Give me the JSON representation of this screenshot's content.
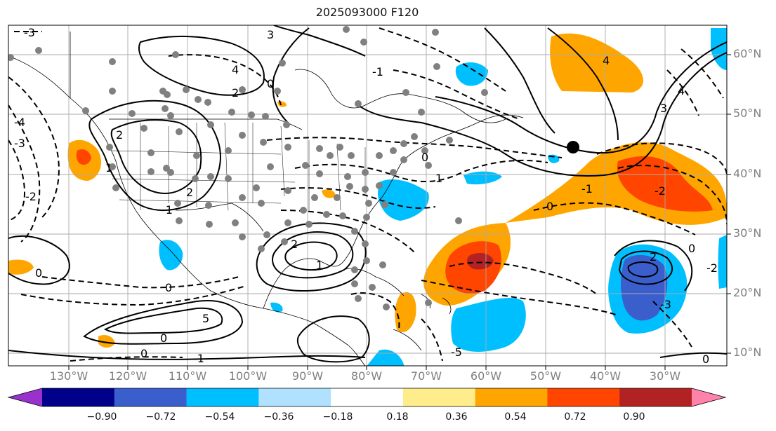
{
  "title": "2025093000 F120",
  "lat_labels": [
    "60°N",
    "50°N",
    "40°N",
    "30°N",
    "20°N",
    "10°N"
  ],
  "lon_labels": [
    "130°W",
    "120°W",
    "110°W",
    "100°W",
    "90°W",
    "80°W",
    "70°W",
    "60°W",
    "50°W",
    "40°W",
    "30°W"
  ],
  "colorbar": {
    "ticks": [
      "−0.90",
      "−0.72",
      "−0.54",
      "−0.36",
      "−0.18",
      "0.18",
      "0.36",
      "0.54",
      "0.72",
      "0.90"
    ],
    "colors": [
      "#9932cc",
      "#00008b",
      "#3a5fcd",
      "#00bfff",
      "#b0e2ff",
      "#ffffff",
      "#ffec8b",
      "#ffa500",
      "#ff4500",
      "#b22222",
      "#ff82ab"
    ],
    "extend": "both"
  },
  "contour_labels": [
    "-3",
    "3",
    "-3",
    "4",
    "-4",
    "2",
    "-2",
    "1",
    "-1",
    "0",
    "5",
    "-5"
  ],
  "colors": {
    "gridline": "#aaaaaa",
    "contour": "#000000",
    "station_dot": "#808080",
    "axis_label": "#808080"
  }
}
